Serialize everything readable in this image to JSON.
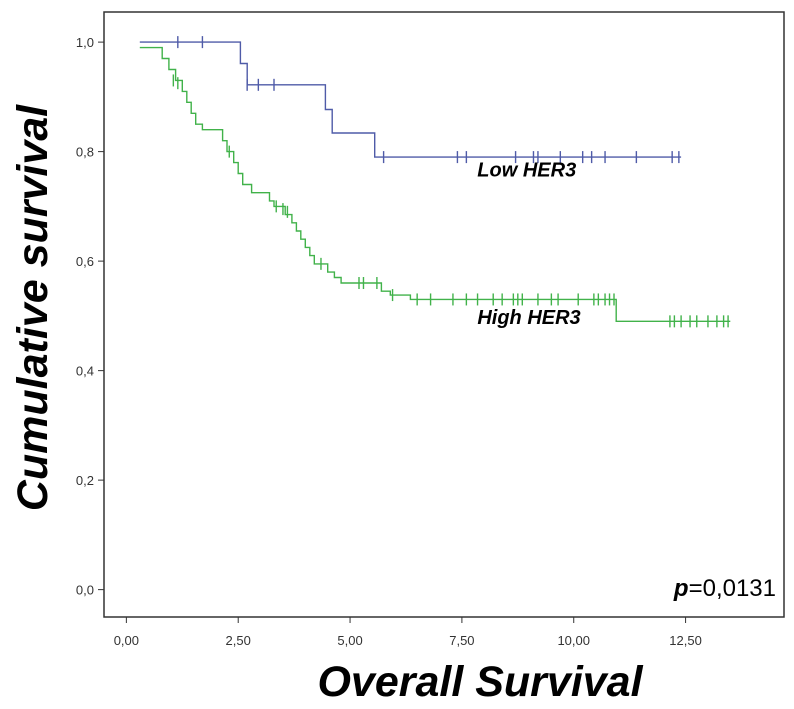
{
  "chart_data": {
    "type": "line",
    "xlabel": "Overall Survival",
    "ylabel": "Cumulative survival",
    "xlim": [
      -0.5,
      14.7
    ],
    "ylim": [
      -0.05,
      1.055
    ],
    "x_ticks": [
      0,
      2.5,
      5,
      7.5,
      10,
      12.5
    ],
    "x_tick_labels": [
      "0,00",
      "2,50",
      "5,00",
      "7,50",
      "10,00",
      "12,50"
    ],
    "y_ticks": [
      0,
      0.2,
      0.4,
      0.6,
      0.8,
      1.0
    ],
    "y_tick_labels": [
      "0,0",
      "0,2",
      "0,4",
      "0,6",
      "0,8",
      "1,0"
    ],
    "grid": false,
    "annotation": {
      "p_label": "p",
      "p_value": "=0,0131"
    },
    "series": [
      {
        "name": "Low HER3",
        "color": "#4f5ba8",
        "steps": [
          [
            0.3,
            1.0
          ],
          [
            2.55,
            1.0
          ],
          [
            2.55,
            0.961
          ],
          [
            2.7,
            0.961
          ],
          [
            2.7,
            0.922
          ],
          [
            4.45,
            0.922
          ],
          [
            4.45,
            0.877
          ],
          [
            4.6,
            0.877
          ],
          [
            4.6,
            0.834
          ],
          [
            5.55,
            0.834
          ],
          [
            5.55,
            0.79
          ],
          [
            12.4,
            0.79
          ]
        ],
        "censored": [
          [
            1.15,
            1.0
          ],
          [
            1.7,
            1.0
          ],
          [
            2.7,
            0.922
          ],
          [
            2.95,
            0.922
          ],
          [
            3.3,
            0.922
          ],
          [
            5.75,
            0.79
          ],
          [
            7.4,
            0.79
          ],
          [
            7.6,
            0.79
          ],
          [
            8.7,
            0.79
          ],
          [
            9.1,
            0.79
          ],
          [
            9.2,
            0.79
          ],
          [
            9.7,
            0.79
          ],
          [
            10.2,
            0.79
          ],
          [
            10.4,
            0.79
          ],
          [
            10.7,
            0.79
          ],
          [
            11.4,
            0.79
          ],
          [
            12.2,
            0.79
          ],
          [
            12.35,
            0.79
          ]
        ]
      },
      {
        "name": "High HER3",
        "color": "#41b24a",
        "steps": [
          [
            0.3,
            0.99
          ],
          [
            0.8,
            0.99
          ],
          [
            0.8,
            0.97
          ],
          [
            0.95,
            0.97
          ],
          [
            0.95,
            0.95
          ],
          [
            1.1,
            0.95
          ],
          [
            1.1,
            0.93
          ],
          [
            1.25,
            0.93
          ],
          [
            1.25,
            0.91
          ],
          [
            1.35,
            0.91
          ],
          [
            1.35,
            0.89
          ],
          [
            1.45,
            0.89
          ],
          [
            1.45,
            0.87
          ],
          [
            1.55,
            0.87
          ],
          [
            1.55,
            0.85
          ],
          [
            1.7,
            0.85
          ],
          [
            1.7,
            0.84
          ],
          [
            2.15,
            0.84
          ],
          [
            2.15,
            0.82
          ],
          [
            2.25,
            0.82
          ],
          [
            2.25,
            0.8
          ],
          [
            2.4,
            0.8
          ],
          [
            2.4,
            0.78
          ],
          [
            2.5,
            0.78
          ],
          [
            2.5,
            0.76
          ],
          [
            2.6,
            0.76
          ],
          [
            2.6,
            0.74
          ],
          [
            2.8,
            0.74
          ],
          [
            2.8,
            0.725
          ],
          [
            3.2,
            0.725
          ],
          [
            3.2,
            0.71
          ],
          [
            3.3,
            0.71
          ],
          [
            3.3,
            0.7
          ],
          [
            3.55,
            0.7
          ],
          [
            3.55,
            0.685
          ],
          [
            3.7,
            0.685
          ],
          [
            3.7,
            0.67
          ],
          [
            3.8,
            0.67
          ],
          [
            3.8,
            0.655
          ],
          [
            3.9,
            0.655
          ],
          [
            3.9,
            0.64
          ],
          [
            4.0,
            0.64
          ],
          [
            4.0,
            0.625
          ],
          [
            4.1,
            0.625
          ],
          [
            4.1,
            0.61
          ],
          [
            4.2,
            0.61
          ],
          [
            4.2,
            0.595
          ],
          [
            4.5,
            0.595
          ],
          [
            4.5,
            0.58
          ],
          [
            4.65,
            0.58
          ],
          [
            4.65,
            0.57
          ],
          [
            4.8,
            0.57
          ],
          [
            4.8,
            0.56
          ],
          [
            5.7,
            0.56
          ],
          [
            5.7,
            0.545
          ],
          [
            5.9,
            0.545
          ],
          [
            5.9,
            0.538
          ],
          [
            6.35,
            0.538
          ],
          [
            6.35,
            0.53
          ],
          [
            10.95,
            0.53
          ],
          [
            10.95,
            0.49
          ],
          [
            13.5,
            0.49
          ]
        ],
        "censored": [
          [
            1.05,
            0.93
          ],
          [
            1.15,
            0.925
          ],
          [
            2.3,
            0.8
          ],
          [
            3.35,
            0.7
          ],
          [
            3.5,
            0.695
          ],
          [
            3.6,
            0.69
          ],
          [
            4.35,
            0.595
          ],
          [
            5.2,
            0.56
          ],
          [
            5.3,
            0.56
          ],
          [
            5.6,
            0.56
          ],
          [
            5.95,
            0.538
          ],
          [
            6.5,
            0.53
          ],
          [
            6.8,
            0.53
          ],
          [
            7.3,
            0.53
          ],
          [
            7.6,
            0.53
          ],
          [
            7.85,
            0.53
          ],
          [
            8.2,
            0.53
          ],
          [
            8.4,
            0.53
          ],
          [
            8.65,
            0.53
          ],
          [
            8.75,
            0.53
          ],
          [
            8.85,
            0.53
          ],
          [
            9.2,
            0.53
          ],
          [
            9.5,
            0.53
          ],
          [
            9.65,
            0.53
          ],
          [
            10.1,
            0.53
          ],
          [
            10.45,
            0.53
          ],
          [
            10.55,
            0.53
          ],
          [
            10.7,
            0.53
          ],
          [
            10.8,
            0.53
          ],
          [
            10.9,
            0.53
          ],
          [
            12.15,
            0.49
          ],
          [
            12.25,
            0.49
          ],
          [
            12.4,
            0.49
          ],
          [
            12.6,
            0.49
          ],
          [
            12.75,
            0.49
          ],
          [
            13.0,
            0.49
          ],
          [
            13.2,
            0.49
          ],
          [
            13.35,
            0.49
          ],
          [
            13.45,
            0.49
          ]
        ]
      }
    ],
    "labels": [
      {
        "text": "Low HER3",
        "x": 8.95,
        "y": 0.755
      },
      {
        "text": "High HER3",
        "x": 9.0,
        "y": 0.485
      }
    ]
  }
}
